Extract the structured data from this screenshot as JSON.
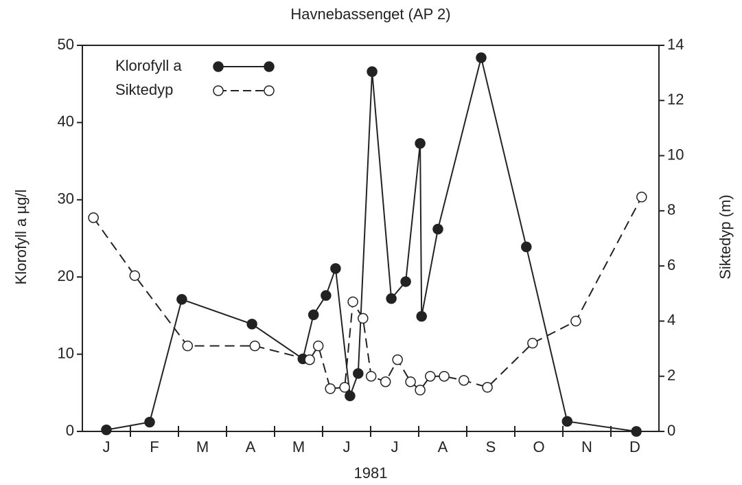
{
  "chart_data": {
    "type": "line",
    "title": "Havnebassenget (AP 2)",
    "xlabel": "1981",
    "ylabel": "Klorofyll a µg/l",
    "y2label": "Siktedyp (m)",
    "categories": [
      "J",
      "F",
      "M",
      "A",
      "M",
      "J",
      "J",
      "A",
      "S",
      "O",
      "N",
      "D"
    ],
    "xlim": [
      0,
      12
    ],
    "ylim": [
      0,
      50
    ],
    "yticks": [
      0,
      10,
      20,
      30,
      40,
      50
    ],
    "y2lim": [
      0,
      14
    ],
    "y2ticks": [
      0,
      2,
      4,
      6,
      8,
      10,
      12,
      14
    ],
    "legend": "upper-left",
    "series": [
      {
        "name": "Klorofyll a",
        "color": "#222222",
        "linestyle": "solid",
        "marker": "filled",
        "x": [
          0.5,
          1.4,
          2.07,
          3.53,
          4.59,
          4.81,
          5.07,
          5.27,
          5.57,
          5.74,
          6.03,
          6.43,
          6.73,
          7.03,
          7.06,
          7.4,
          8.3,
          9.24,
          10.09,
          11.53
        ],
        "values": [
          0.2,
          1.2,
          17.1,
          13.9,
          9.4,
          15.1,
          17.6,
          21.1,
          4.6,
          7.5,
          46.6,
          17.2,
          19.4,
          37.3,
          14.9,
          26.2,
          48.4,
          23.9,
          1.3,
          0.0
        ]
      },
      {
        "name": "Siktedyp",
        "color": "#222222",
        "linestyle": "dashed",
        "marker": "open",
        "axis": "y2",
        "x": [
          0.23,
          1.09,
          2.19,
          3.59,
          4.73,
          4.91,
          5.16,
          5.46,
          5.63,
          5.84,
          6.01,
          6.31,
          6.56,
          6.83,
          7.03,
          7.24,
          7.53,
          7.94,
          8.43,
          9.37,
          10.27,
          11.64
        ],
        "values": [
          7.75,
          5.65,
          3.1,
          3.1,
          2.6,
          3.1,
          1.55,
          1.6,
          4.7,
          4.1,
          2.0,
          1.8,
          2.6,
          1.8,
          1.5,
          2.0,
          2.0,
          1.85,
          1.6,
          3.2,
          4.0,
          8.5
        ]
      }
    ]
  }
}
